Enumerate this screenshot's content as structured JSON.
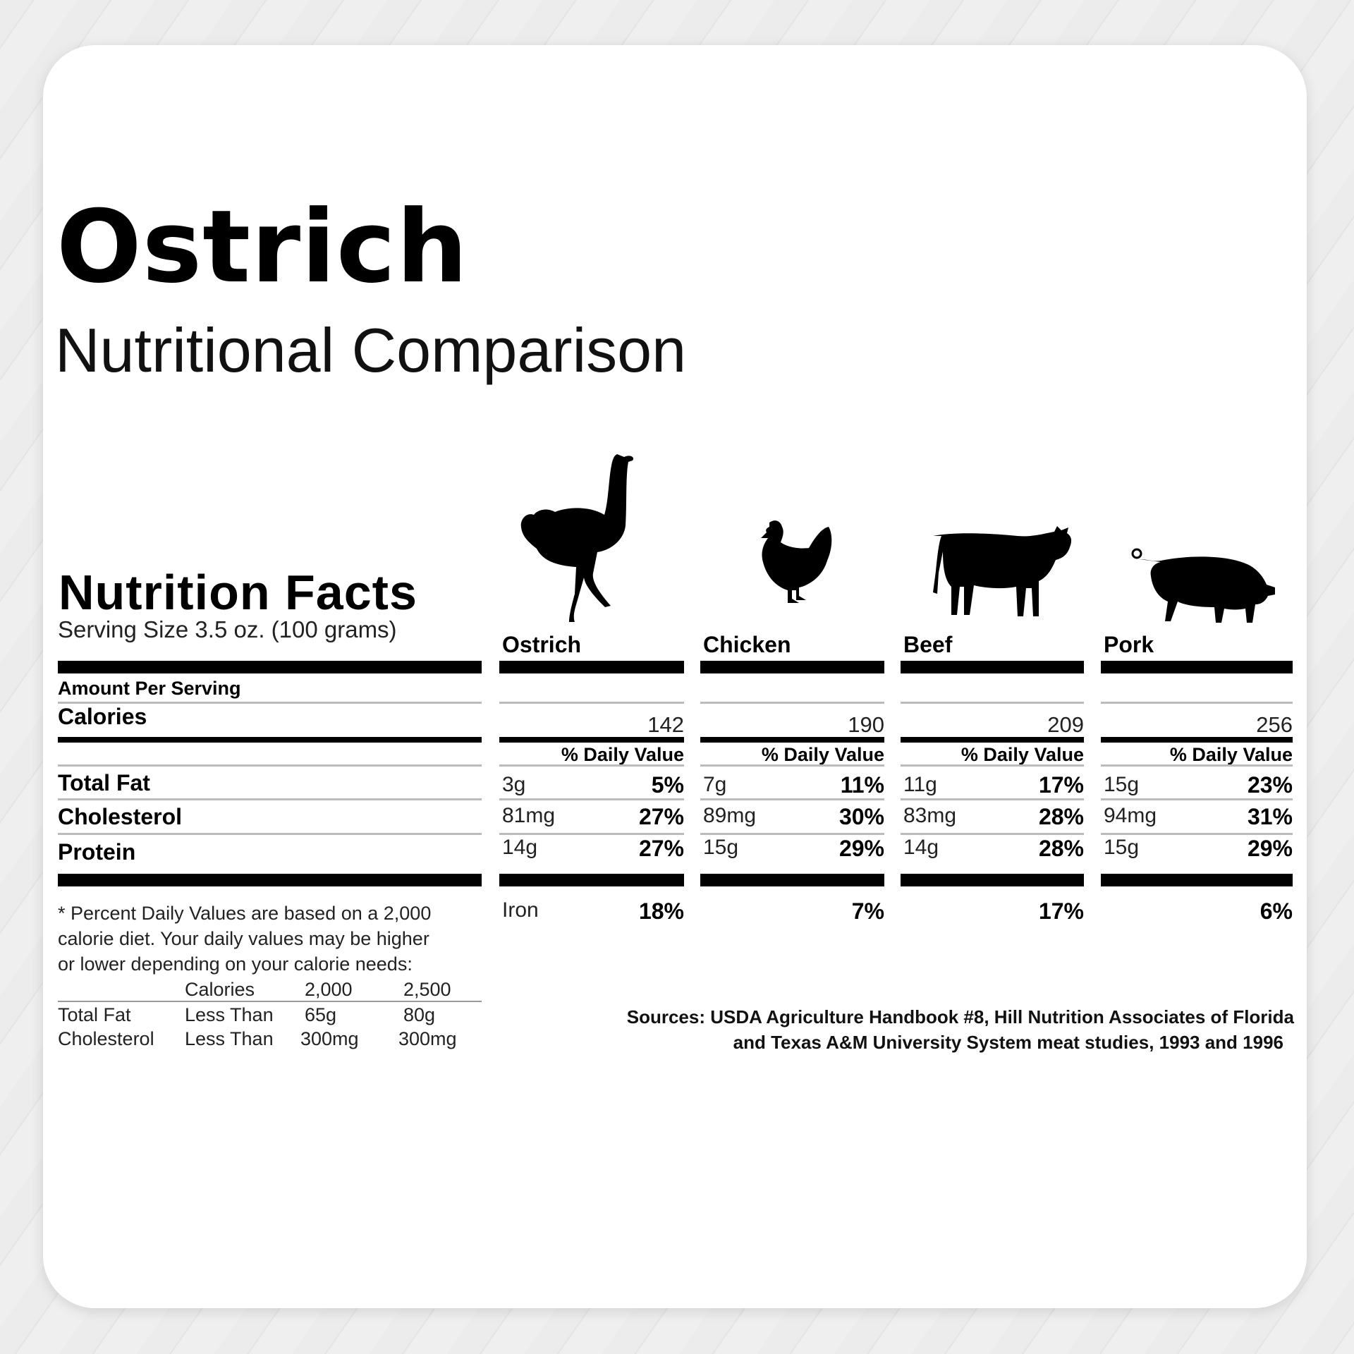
{
  "header": {
    "title": "Ostrich",
    "subtitle": "Nutritional Comparison"
  },
  "label": {
    "title": "Nutrition Facts",
    "serving": "Serving Size 3.5 oz. (100 grams)",
    "amount_per_serving": "Amount Per Serving",
    "rows": {
      "calories": "Calories",
      "total_fat": "Total Fat",
      "cholesterol": "Cholesterol",
      "protein": "Protein"
    },
    "daily_value_label": "% Daily Value"
  },
  "columns": [
    {
      "name": "Ostrich",
      "icon": "ostrich-icon",
      "calories": "142",
      "fat": "3g",
      "fat_pct": "5%",
      "chol": "81mg",
      "chol_pct": "27%",
      "protein": "14g",
      "protein_pct": "27%",
      "iron_label": "Iron",
      "iron_pct": "18%"
    },
    {
      "name": "Chicken",
      "icon": "chicken-icon",
      "calories": "190",
      "fat": "7g",
      "fat_pct": "11%",
      "chol": "89mg",
      "chol_pct": "30%",
      "protein": "15g",
      "protein_pct": "29%",
      "iron_pct": "7%"
    },
    {
      "name": "Beef",
      "icon": "cow-icon",
      "calories": "209",
      "fat": "11g",
      "fat_pct": "17%",
      "chol": "83mg",
      "chol_pct": "28%",
      "protein": "14g",
      "protein_pct": "28%",
      "iron_pct": "17%"
    },
    {
      "name": "Pork",
      "icon": "pig-icon",
      "calories": "256",
      "fat": "15g",
      "fat_pct": "23%",
      "chol": "94mg",
      "chol_pct": "31%",
      "protein": "15g",
      "protein_pct": "29%",
      "iron_pct": "6%"
    }
  ],
  "footnote": {
    "lines": [
      "* Percent Daily Values are based on a 2,000",
      "calorie diet. Your daily values may be higher",
      "or lower depending on your calorie needs:"
    ],
    "table": {
      "header": [
        "",
        "Calories",
        "2,000",
        "2,500"
      ],
      "rows": [
        [
          "Total Fat",
          "Less Than",
          "65g",
          "80g"
        ],
        [
          "Cholesterol",
          "Less Than",
          "300mg",
          "300mg"
        ]
      ]
    }
  },
  "sources": [
    "Sources: USDA Agriculture Handbook #8, Hill Nutrition Associates of Florida",
    "and Texas A&M University System meat studies, 1993 and 1996"
  ]
}
